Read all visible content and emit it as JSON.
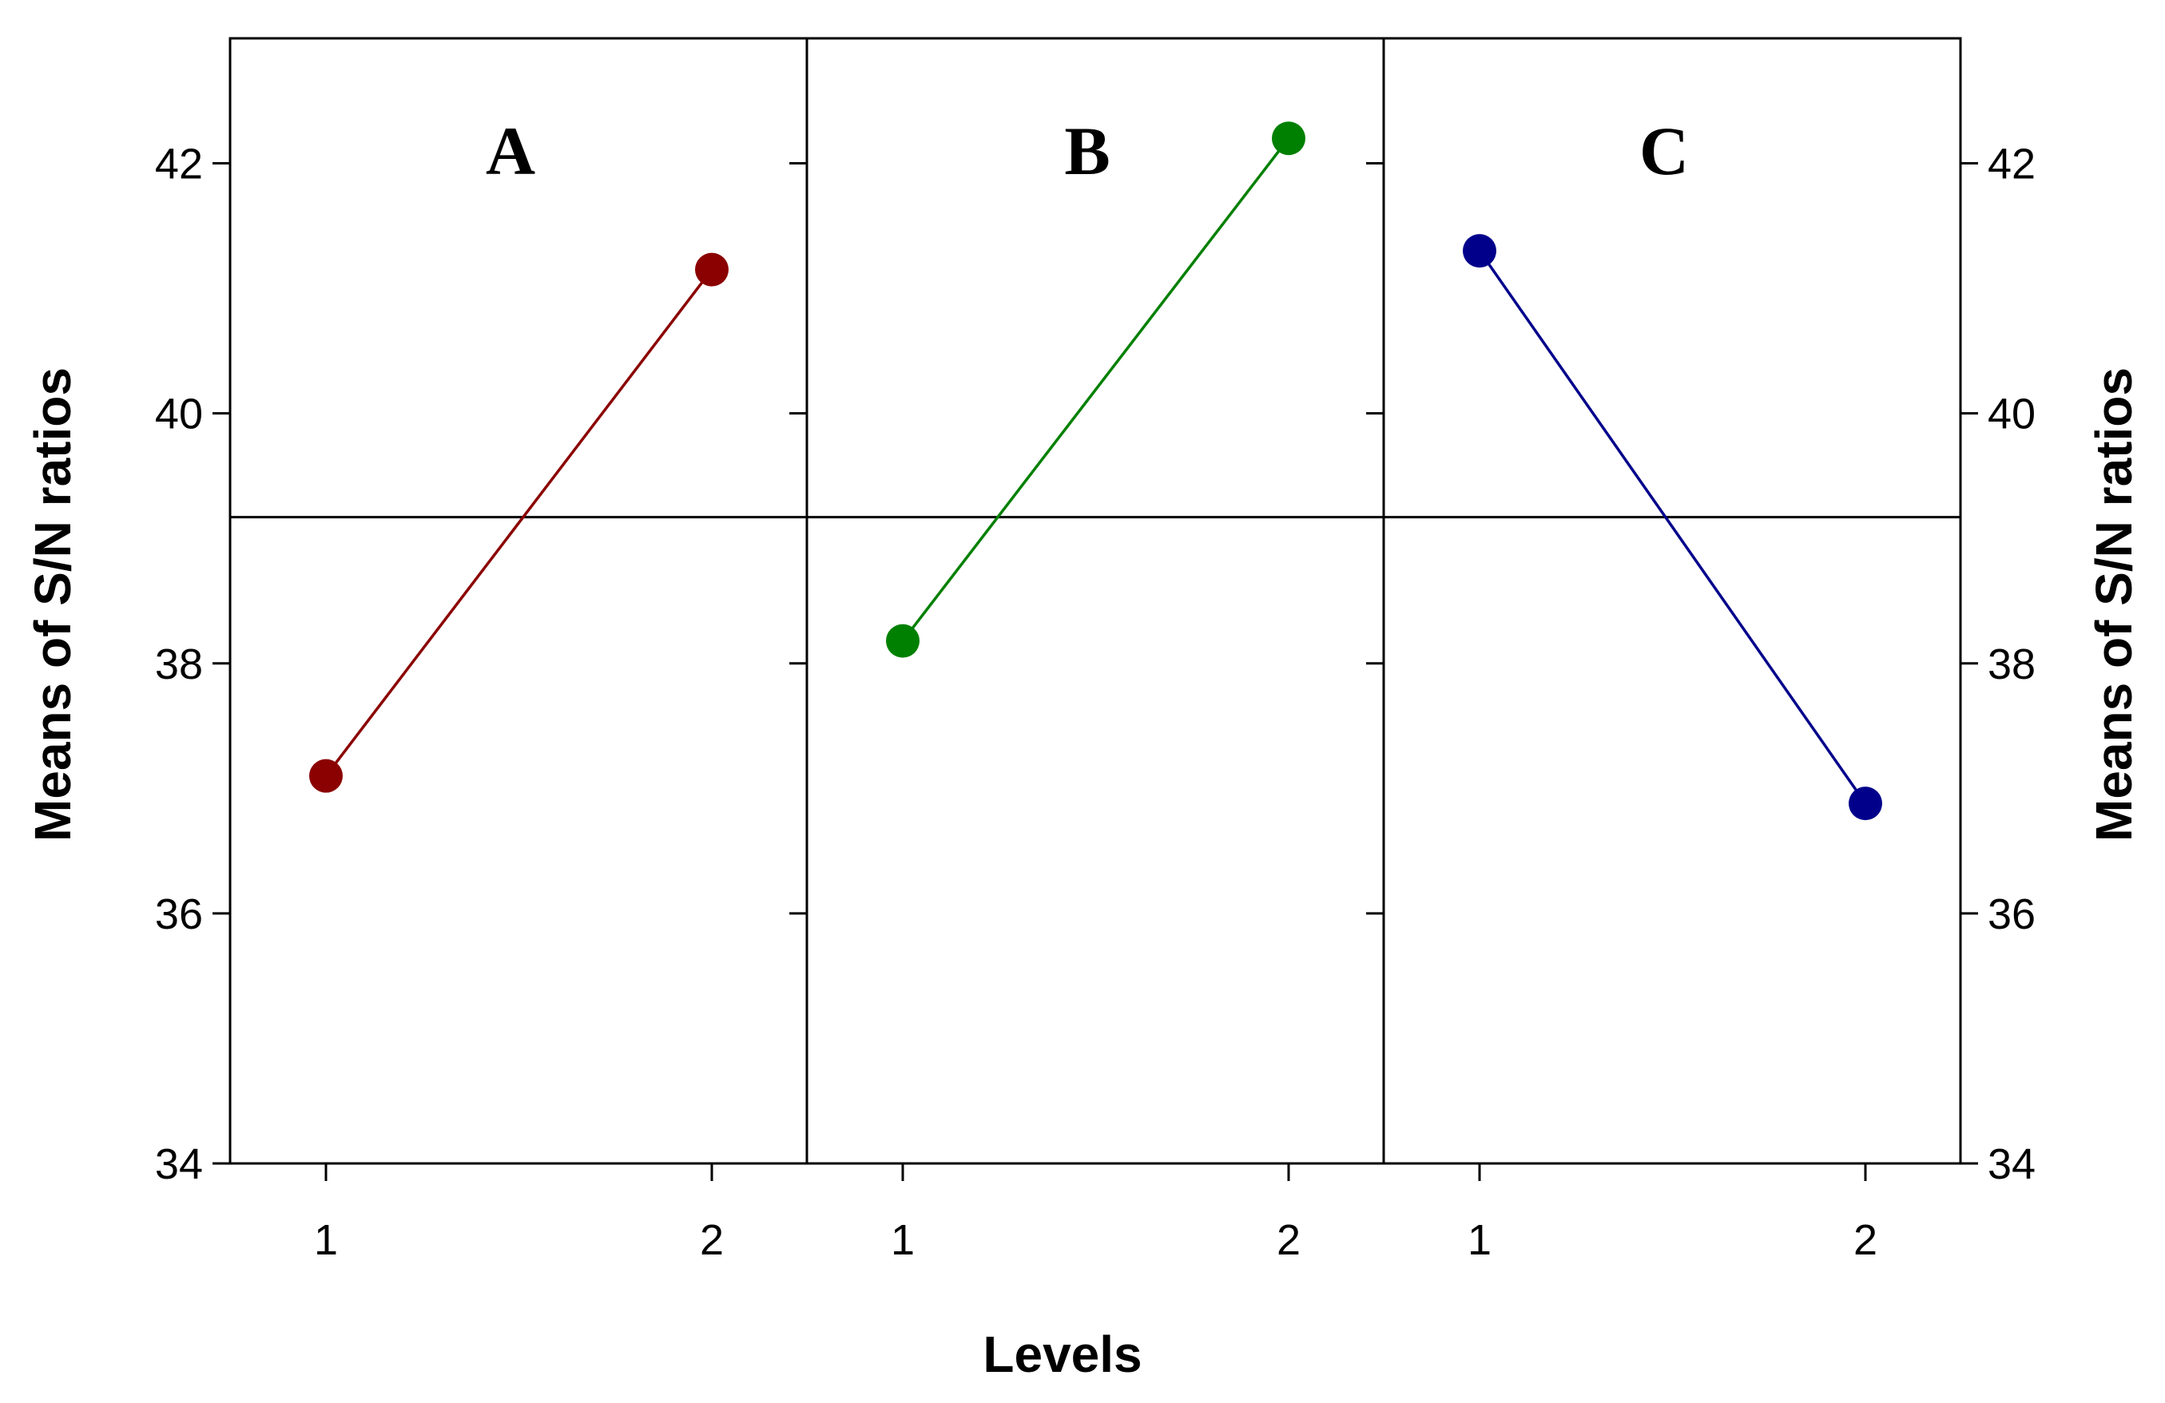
{
  "chart_data": {
    "type": "line",
    "ylabel": "Means of S/N ratios",
    "xlabel": "Levels",
    "ylim": [
      34,
      43
    ],
    "yticks": [
      34,
      36,
      38,
      40,
      42
    ],
    "reference_line": 39.17,
    "grid": false,
    "panels": [
      {
        "title": "A",
        "x": [
          "1",
          "2"
        ],
        "values": [
          37.1,
          41.15
        ],
        "color": "#8b0000"
      },
      {
        "title": "B",
        "x": [
          "1",
          "2"
        ],
        "values": [
          38.18,
          42.2
        ],
        "color": "#008000"
      },
      {
        "title": "C",
        "x": [
          "1",
          "2"
        ],
        "values": [
          41.3,
          36.88
        ],
        "color": "#00008b"
      }
    ]
  }
}
